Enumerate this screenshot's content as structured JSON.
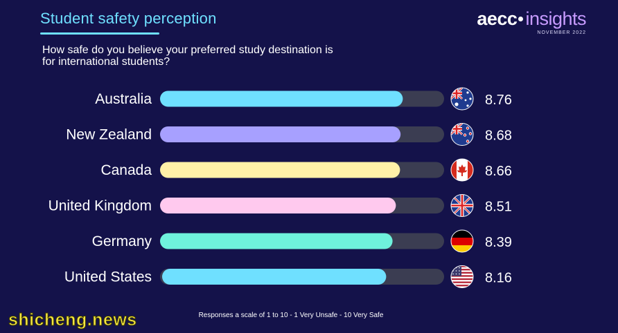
{
  "header": {
    "title": "Student safety perception",
    "logo_brand": "aecc",
    "logo_sub": "insights",
    "logo_date": "NOVEMBER 2022"
  },
  "question": "How safe do you believe your preferred study destination is for international students?",
  "footnote": "Responses a scale of 1 to 10 - 1 Very Unsafe - 10 Very Safe",
  "watermark": "shicheng.news",
  "chart_data": {
    "type": "bar",
    "orientation": "horizontal",
    "title": "Student safety perception",
    "xlim": [
      0,
      10
    ],
    "grid": false,
    "legend": "none",
    "categories": [
      "Australia",
      "New Zealand",
      "Canada",
      "United Kingdom",
      "Germany",
      "United States"
    ],
    "values": [
      8.76,
      8.68,
      8.66,
      8.51,
      8.39,
      8.16
    ],
    "value_labels": [
      "8.76",
      "8.68",
      "8.66",
      "8.51",
      "8.39",
      "8.16"
    ],
    "bar_colors": [
      "#6fe0ff",
      "#a7a0ff",
      "#fff1a8",
      "#ffc9ee",
      "#6ff2dc",
      "#6fe0ff"
    ],
    "track_color": "#3b3d52",
    "flag_icons": [
      "australia-flag-icon",
      "new-zealand-flag-icon",
      "canada-flag-icon",
      "united-kingdom-flag-icon",
      "germany-flag-icon",
      "united-states-flag-icon"
    ]
  }
}
